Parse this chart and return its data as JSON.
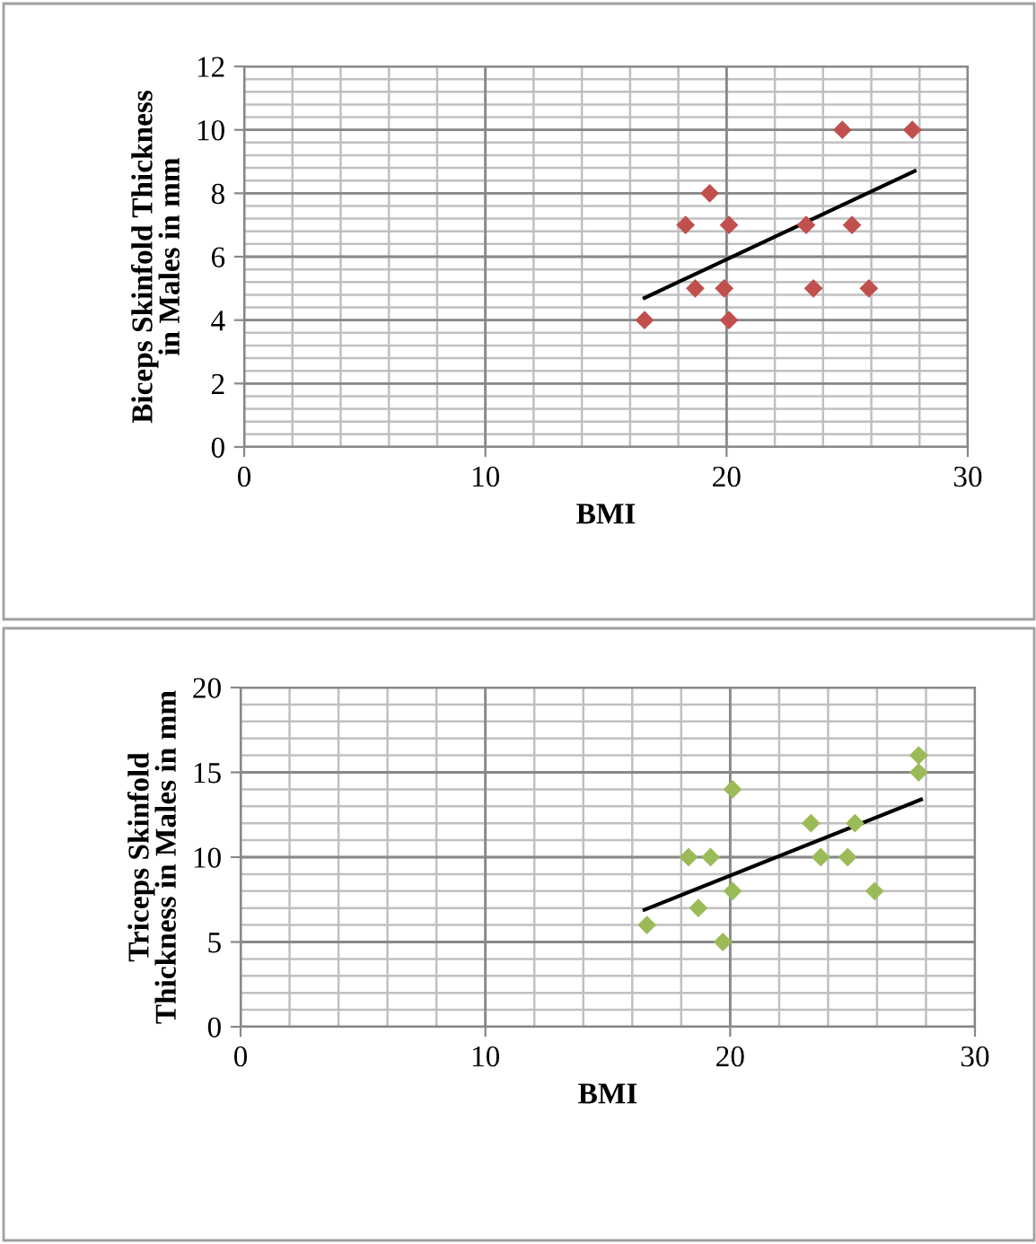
{
  "chart_data": [
    {
      "type": "scatter",
      "xlabel": "BMI",
      "ylabel": "Biceps Skinfold Thickness in Males in mm",
      "xlim": [
        0,
        30
      ],
      "ylim": [
        0,
        12
      ],
      "xticks": [
        0,
        10,
        20,
        30
      ],
      "yticks": [
        0,
        2,
        4,
        6,
        8,
        10,
        12
      ],
      "grid": true,
      "legend": false,
      "series": [
        {
          "color": "#c0504d",
          "marker": "diamond",
          "x": [
            16.6,
            18.3,
            19.3,
            18.7,
            19.9,
            20.1,
            20.1,
            23.3,
            24.8,
            23.6,
            25.2,
            25.9,
            27.7
          ],
          "values": [
            4,
            7,
            8,
            5,
            5,
            7,
            4,
            7,
            10,
            5,
            7,
            5,
            10
          ]
        },
        {
          "type": "line",
          "marker": "none",
          "color": "#000000",
          "x": [
            16.6,
            27.8
          ],
          "values": [
            4.7,
            8.7
          ]
        }
      ]
    },
    {
      "type": "scatter",
      "xlabel": "BMI",
      "ylabel": "Triceps Skinfold Thickness in Males in mm",
      "xlim": [
        0,
        30
      ],
      "ylim": [
        0,
        20
      ],
      "xticks": [
        0,
        10,
        20,
        30
      ],
      "yticks": [
        0,
        5,
        10,
        15,
        20
      ],
      "grid": true,
      "legend": false,
      "series": [
        {
          "color": "#9bbb59",
          "marker": "diamond",
          "x": [
            16.6,
            18.3,
            19.2,
            18.7,
            20.1,
            20.1,
            19.7,
            23.3,
            23.7,
            24.8,
            25.1,
            25.9,
            27.7,
            27.7
          ],
          "values": [
            6,
            10,
            10,
            7,
            14,
            8,
            5,
            12,
            10,
            10,
            12,
            8,
            15,
            16
          ]
        },
        {
          "type": "line",
          "marker": "none",
          "color": "#000000",
          "x": [
            16.5,
            27.8
          ],
          "values": [
            6.9,
            13.4
          ]
        }
      ]
    }
  ]
}
